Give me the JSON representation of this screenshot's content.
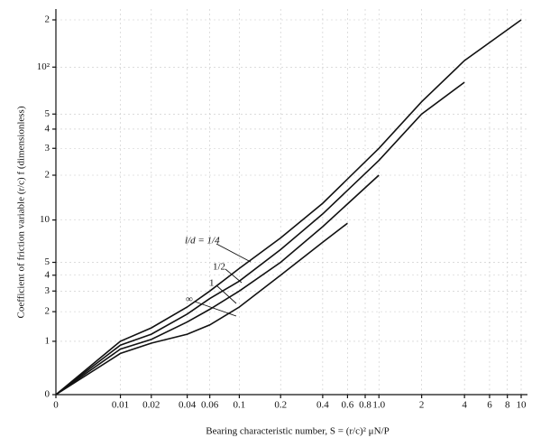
{
  "chart_data": {
    "type": "line",
    "xlabel": "Bearing characteristic number, S = (r/c)² μN/P",
    "ylabel": "Coefficient of friction variable (r/c) f (dimensionless)",
    "xscale": "symlog",
    "yscale": "symlog",
    "xlim": [
      0,
      10
    ],
    "ylim": [
      0,
      200
    ],
    "xticks": [
      0,
      0.01,
      0.02,
      0.04,
      0.06,
      0.1,
      0.2,
      0.4,
      0.6,
      0.8,
      {
        "value": 1.0,
        "label": "1.0"
      },
      2,
      4,
      6,
      8,
      10
    ],
    "yticks": [
      0,
      1,
      2,
      3,
      4,
      5,
      10,
      {
        "value": 20,
        "label": "2"
      },
      {
        "value": 30,
        "label": "3"
      },
      {
        "value": 40,
        "label": "4"
      },
      {
        "value": 50,
        "label": "5"
      },
      {
        "value": 100,
        "label": "10²"
      },
      {
        "value": 200,
        "label": "2"
      }
    ],
    "grid": true,
    "series": [
      {
        "name": "l/d = 1/4",
        "color": "#111111",
        "x": [
          0,
          0.01,
          0.02,
          0.04,
          0.06,
          0.1,
          0.2,
          0.4,
          1,
          2,
          4,
          10
        ],
        "values": [
          0,
          1,
          1.4,
          2.2,
          3,
          4.5,
          7.5,
          13,
          30,
          60,
          110,
          200
        ]
      },
      {
        "name": "1/2",
        "color": "#111111",
        "x": [
          0,
          0.01,
          0.02,
          0.04,
          0.06,
          0.1,
          0.2,
          0.4,
          1,
          2,
          4
        ],
        "values": [
          0,
          0.9,
          1.2,
          1.9,
          2.6,
          3.6,
          6.2,
          11,
          25,
          50,
          80
        ]
      },
      {
        "name": "1",
        "color": "#111111",
        "x": [
          0,
          0.01,
          0.02,
          0.04,
          0.06,
          0.1,
          0.2,
          0.4,
          1
        ],
        "values": [
          0,
          0.8,
          1.05,
          1.6,
          2.1,
          3,
          5,
          9,
          20
        ]
      },
      {
        "name": "∞",
        "color": "#111111",
        "x": [
          0,
          0.01,
          0.02,
          0.04,
          0.06,
          0.1,
          0.2,
          0.4,
          0.6
        ],
        "values": [
          0,
          0.7,
          0.95,
          1.2,
          1.5,
          2.2,
          4,
          7,
          9.5
        ]
      }
    ]
  }
}
